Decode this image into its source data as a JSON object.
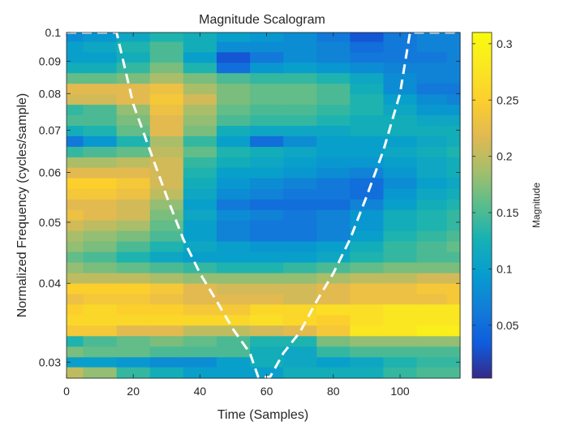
{
  "chart_data": {
    "type": "heatmap",
    "title": "Magnitude Scalogram",
    "xlabel": "Time (Samples)",
    "ylabel": "Normalized Frequency  (cycles/sample)",
    "colorbar_label": "Magnitude",
    "colormap": "parula",
    "xlim": [
      0,
      118
    ],
    "ylim": [
      0.0283,
      0.1
    ],
    "y_scale": "log",
    "clim": [
      0.003,
      0.31
    ],
    "x_ticks": [
      0,
      20,
      40,
      60,
      80,
      100
    ],
    "x_tick_labels": [
      "0",
      "20",
      "40",
      "60",
      "80",
      "100"
    ],
    "y_ticks": [
      0.03,
      0.04,
      0.05,
      0.06,
      0.07,
      0.08,
      0.09,
      0.1
    ],
    "y_tick_labels": [
      "0.03",
      "0.04",
      "0.05",
      "0.06",
      "0.07",
      "0.08",
      "0.09",
      "0.1"
    ],
    "colorbar_ticks": [
      0.05,
      0.1,
      0.15,
      0.2,
      0.25,
      0.3
    ],
    "colorbar_tick_labels": [
      "0.05",
      "0.1",
      "0.15",
      "0.2",
      "0.25",
      "0.3"
    ],
    "time_columns": [
      0,
      10,
      20,
      30,
      40,
      50,
      60,
      70,
      80,
      90,
      100,
      110,
      118
    ],
    "frequency_rows": [
      0.029,
      0.03,
      0.0312,
      0.0324,
      0.0337,
      0.035,
      0.0364,
      0.0378,
      0.0393,
      0.0408,
      0.0424,
      0.0441,
      0.0458,
      0.0476,
      0.0495,
      0.0514,
      0.0534,
      0.0555,
      0.0577,
      0.06,
      0.0623,
      0.0647,
      0.0673,
      0.0699,
      0.0726,
      0.0755,
      0.0784,
      0.0815,
      0.0847,
      0.088,
      0.0914,
      0.095,
      0.0987
    ],
    "magnitude_rows": [
      [
        0.2,
        0.18,
        0.14,
        0.12,
        0.1,
        0.1,
        0.1,
        0.12,
        0.12,
        0.12,
        0.14,
        0.15,
        0.15
      ],
      [
        0.1,
        0.1,
        0.09,
        0.08,
        0.08,
        0.1,
        0.12,
        0.11,
        0.1,
        0.11,
        0.13,
        0.14,
        0.14
      ],
      [
        0.17,
        0.16,
        0.16,
        0.15,
        0.15,
        0.15,
        0.12,
        0.11,
        0.14,
        0.15,
        0.15,
        0.15,
        0.15
      ],
      [
        0.13,
        0.15,
        0.16,
        0.17,
        0.16,
        0.15,
        0.13,
        0.13,
        0.17,
        0.18,
        0.18,
        0.18,
        0.18
      ],
      [
        0.24,
        0.24,
        0.22,
        0.22,
        0.2,
        0.2,
        0.21,
        0.22,
        0.24,
        0.28,
        0.28,
        0.29,
        0.29
      ],
      [
        0.26,
        0.26,
        0.26,
        0.26,
        0.26,
        0.26,
        0.27,
        0.26,
        0.25,
        0.27,
        0.28,
        0.28,
        0.28
      ],
      [
        0.25,
        0.26,
        0.25,
        0.25,
        0.24,
        0.24,
        0.26,
        0.26,
        0.27,
        0.27,
        0.28,
        0.28,
        0.28
      ],
      [
        0.23,
        0.24,
        0.24,
        0.23,
        0.22,
        0.22,
        0.22,
        0.21,
        0.22,
        0.23,
        0.23,
        0.23,
        0.24
      ],
      [
        0.25,
        0.25,
        0.25,
        0.24,
        0.22,
        0.21,
        0.21,
        0.21,
        0.22,
        0.23,
        0.23,
        0.24,
        0.24
      ],
      [
        0.2,
        0.2,
        0.2,
        0.19,
        0.18,
        0.18,
        0.18,
        0.18,
        0.19,
        0.2,
        0.2,
        0.21,
        0.21
      ],
      [
        0.18,
        0.17,
        0.16,
        0.15,
        0.14,
        0.13,
        0.13,
        0.14,
        0.15,
        0.16,
        0.17,
        0.17,
        0.17
      ],
      [
        0.16,
        0.15,
        0.13,
        0.11,
        0.1,
        0.1,
        0.1,
        0.1,
        0.11,
        0.13,
        0.14,
        0.15,
        0.15
      ],
      [
        0.18,
        0.17,
        0.15,
        0.13,
        0.11,
        0.1,
        0.09,
        0.09,
        0.1,
        0.12,
        0.14,
        0.15,
        0.16
      ],
      [
        0.19,
        0.18,
        0.17,
        0.15,
        0.1,
        0.07,
        0.06,
        0.06,
        0.07,
        0.1,
        0.13,
        0.14,
        0.15
      ],
      [
        0.21,
        0.2,
        0.19,
        0.16,
        0.1,
        0.07,
        0.06,
        0.06,
        0.07,
        0.09,
        0.12,
        0.13,
        0.14
      ],
      [
        0.23,
        0.22,
        0.21,
        0.17,
        0.11,
        0.08,
        0.07,
        0.06,
        0.07,
        0.09,
        0.12,
        0.13,
        0.14
      ],
      [
        0.22,
        0.22,
        0.21,
        0.18,
        0.1,
        0.06,
        0.05,
        0.05,
        0.05,
        0.07,
        0.1,
        0.12,
        0.13
      ],
      [
        0.24,
        0.24,
        0.23,
        0.2,
        0.11,
        0.08,
        0.07,
        0.06,
        0.06,
        0.05,
        0.09,
        0.11,
        0.12
      ],
      [
        0.25,
        0.25,
        0.24,
        0.21,
        0.12,
        0.09,
        0.08,
        0.07,
        0.06,
        0.05,
        0.08,
        0.1,
        0.11
      ],
      [
        0.22,
        0.22,
        0.22,
        0.21,
        0.13,
        0.1,
        0.1,
        0.09,
        0.08,
        0.07,
        0.09,
        0.11,
        0.12
      ],
      [
        0.19,
        0.19,
        0.2,
        0.21,
        0.14,
        0.12,
        0.11,
        0.1,
        0.09,
        0.09,
        0.1,
        0.11,
        0.12
      ],
      [
        0.14,
        0.15,
        0.16,
        0.2,
        0.16,
        0.13,
        0.12,
        0.11,
        0.1,
        0.1,
        0.11,
        0.12,
        0.13
      ],
      [
        0.06,
        0.09,
        0.13,
        0.19,
        0.14,
        0.1,
        0.05,
        0.08,
        0.1,
        0.1,
        0.1,
        0.11,
        0.12
      ],
      [
        0.12,
        0.13,
        0.16,
        0.22,
        0.17,
        0.12,
        0.11,
        0.11,
        0.11,
        0.12,
        0.12,
        0.12,
        0.12
      ],
      [
        0.15,
        0.15,
        0.17,
        0.22,
        0.18,
        0.15,
        0.14,
        0.14,
        0.13,
        0.12,
        0.12,
        0.11,
        0.11
      ],
      [
        0.14,
        0.15,
        0.18,
        0.23,
        0.19,
        0.16,
        0.15,
        0.15,
        0.14,
        0.13,
        0.11,
        0.09,
        0.09
      ],
      [
        0.21,
        0.21,
        0.22,
        0.24,
        0.21,
        0.17,
        0.16,
        0.16,
        0.15,
        0.13,
        0.1,
        0.08,
        0.07
      ],
      [
        0.22,
        0.22,
        0.22,
        0.23,
        0.19,
        0.17,
        0.16,
        0.16,
        0.15,
        0.12,
        0.08,
        0.06,
        0.06
      ],
      [
        0.16,
        0.16,
        0.17,
        0.19,
        0.17,
        0.15,
        0.14,
        0.14,
        0.13,
        0.11,
        0.08,
        0.07,
        0.07
      ],
      [
        0.12,
        0.12,
        0.14,
        0.17,
        0.13,
        0.05,
        0.09,
        0.1,
        0.09,
        0.08,
        0.07,
        0.07,
        0.07
      ],
      [
        0.1,
        0.1,
        0.12,
        0.15,
        0.1,
        0.03,
        0.06,
        0.08,
        0.07,
        0.06,
        0.06,
        0.06,
        0.07
      ],
      [
        0.1,
        0.11,
        0.13,
        0.15,
        0.12,
        0.08,
        0.08,
        0.08,
        0.07,
        0.05,
        0.06,
        0.07,
        0.07
      ],
      [
        0.08,
        0.09,
        0.11,
        0.13,
        0.12,
        0.1,
        0.09,
        0.08,
        0.06,
        0.03,
        0.06,
        0.07,
        0.07
      ]
    ],
    "cone_of_influence": {
      "style": "white dashed",
      "points": [
        [
          0,
          0.1
        ],
        [
          15,
          0.1
        ],
        [
          20,
          0.077
        ],
        [
          25,
          0.065
        ],
        [
          30,
          0.055
        ],
        [
          35,
          0.047
        ],
        [
          40,
          0.0415
        ],
        [
          45,
          0.0375
        ],
        [
          50,
          0.0338
        ],
        [
          55,
          0.031
        ],
        [
          57.5,
          0.0284
        ],
        [
          61,
          0.0284
        ],
        [
          65,
          0.031
        ],
        [
          70,
          0.0335
        ],
        [
          75,
          0.0375
        ],
        [
          80,
          0.0415
        ],
        [
          85,
          0.047
        ],
        [
          90,
          0.055
        ],
        [
          95,
          0.065
        ],
        [
          100,
          0.08
        ],
        [
          103,
          0.1
        ],
        [
          118,
          0.1
        ]
      ]
    }
  }
}
